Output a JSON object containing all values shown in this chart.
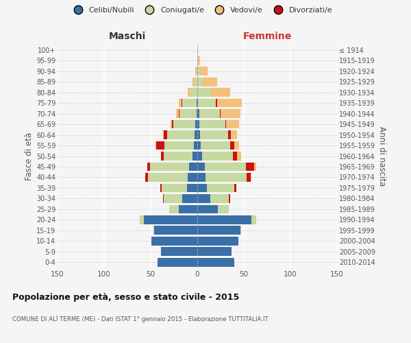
{
  "age_groups": [
    "0-4",
    "5-9",
    "10-14",
    "15-19",
    "20-24",
    "25-29",
    "30-34",
    "35-39",
    "40-44",
    "45-49",
    "50-54",
    "55-59",
    "60-64",
    "65-69",
    "70-74",
    "75-79",
    "80-84",
    "85-89",
    "90-94",
    "95-99",
    "100+"
  ],
  "birth_years": [
    "2010-2014",
    "2005-2009",
    "2000-2004",
    "1995-1999",
    "1990-1994",
    "1985-1989",
    "1980-1984",
    "1975-1979",
    "1970-1974",
    "1965-1969",
    "1960-1964",
    "1955-1959",
    "1950-1954",
    "1945-1949",
    "1940-1944",
    "1935-1939",
    "1930-1934",
    "1925-1929",
    "1920-1924",
    "1915-1919",
    "≤ 1914"
  ],
  "male": {
    "celibe": [
      43,
      39,
      49,
      46,
      57,
      20,
      16,
      11,
      10,
      9,
      5,
      4,
      3,
      2,
      1,
      1,
      0,
      0,
      0,
      0,
      0
    ],
    "coniugato": [
      0,
      0,
      0,
      1,
      5,
      10,
      20,
      27,
      43,
      42,
      31,
      31,
      29,
      24,
      18,
      15,
      8,
      3,
      1,
      0,
      0
    ],
    "vedovo": [
      0,
      0,
      0,
      0,
      0,
      0,
      0,
      0,
      0,
      0,
      0,
      1,
      1,
      2,
      3,
      3,
      2,
      2,
      1,
      0,
      0
    ],
    "divorziato": [
      0,
      0,
      0,
      0,
      0,
      0,
      1,
      2,
      3,
      3,
      3,
      9,
      4,
      1,
      1,
      1,
      0,
      0,
      0,
      0,
      0
    ]
  },
  "female": {
    "nubile": [
      40,
      37,
      44,
      46,
      58,
      22,
      14,
      10,
      9,
      8,
      5,
      4,
      3,
      2,
      2,
      1,
      0,
      0,
      0,
      0,
      0
    ],
    "coniugata": [
      0,
      0,
      0,
      1,
      5,
      12,
      20,
      30,
      44,
      44,
      33,
      31,
      30,
      28,
      22,
      19,
      15,
      6,
      3,
      1,
      0
    ],
    "vedova": [
      0,
      0,
      0,
      0,
      0,
      0,
      0,
      0,
      1,
      2,
      4,
      5,
      7,
      14,
      21,
      27,
      20,
      15,
      8,
      2,
      1
    ],
    "divorziata": [
      0,
      0,
      0,
      0,
      0,
      0,
      1,
      2,
      4,
      9,
      5,
      5,
      3,
      1,
      1,
      1,
      0,
      0,
      0,
      0,
      0
    ]
  },
  "colors": {
    "celibe": "#3a6fa8",
    "coniugato": "#c5d9a0",
    "vedovo": "#f5c07a",
    "divorziato": "#cc1111"
  },
  "xlim": 150,
  "title": "Popolazione per età, sesso e stato civile - 2015",
  "subtitle": "COMUNE DI ALÌ TERME (ME) - Dati ISTAT 1° gennaio 2015 - Elaborazione TUTTITALIA.IT",
  "ylabel_left": "Fasce di età",
  "ylabel_right": "Anni di nascita",
  "xlabel_left": "Maschi",
  "xlabel_right": "Femmine",
  "bg_color": "#f5f5f5",
  "legend_labels": [
    "Celibi/Nubili",
    "Coniugati/e",
    "Vedovi/e",
    "Divorziati/e"
  ]
}
